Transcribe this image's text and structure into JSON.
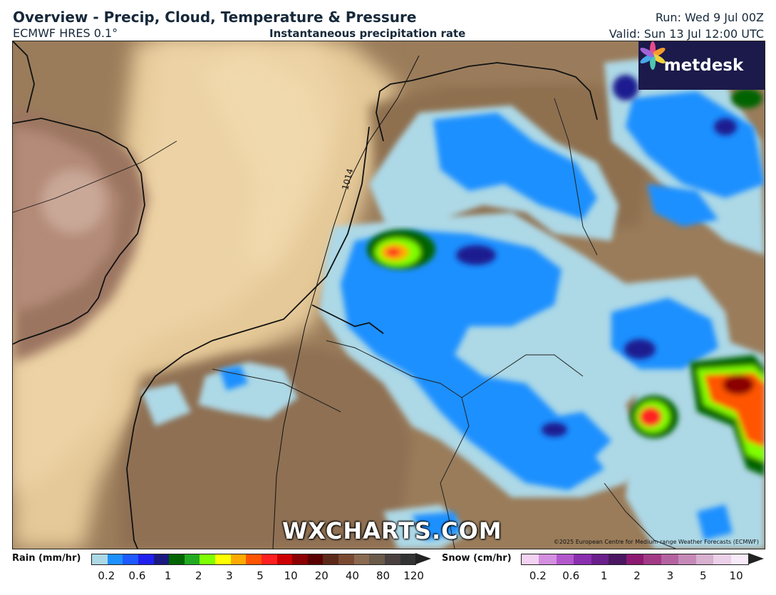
{
  "header": {
    "title": "Overview - Precip, Cloud, Temperature & Pressure",
    "model": "ECMWF HRES 0.1°",
    "field": "Instantaneous precipitation rate",
    "run": "Run: Wed 9 Jul 00Z",
    "valid": "Valid: Sun 13 Jul 12:00 UTC"
  },
  "map": {
    "isobar_label": "1014",
    "watermark": "WXCHARTS.COM",
    "copyright": "©2025 European Centre for Medium-range Weather Forecasts (ECMWF)",
    "logo_text": "metdesk"
  },
  "legend": {
    "rain": {
      "label": "Rain (mm/hr)",
      "ticks": [
        "0.2",
        "0.6",
        "1",
        "2",
        "3",
        "5",
        "10",
        "20",
        "40",
        "80",
        "120"
      ],
      "colors": [
        "#add8e6",
        "#1e90ff",
        "#1e5aff",
        "#2020ee",
        "#1a1a80",
        "#006400",
        "#22aa22",
        "#7fff00",
        "#ffff00",
        "#ffaa00",
        "#ff5500",
        "#ff2020",
        "#cc0000",
        "#8b0000",
        "#5a0000",
        "#5c2a1a",
        "#7a4a30",
        "#8a6a50",
        "#6a5a4a",
        "#4a4040",
        "#333333"
      ]
    },
    "snow": {
      "label": "Snow (cm/hr)",
      "ticks": [
        "0.2",
        "0.6",
        "1",
        "2",
        "3",
        "5",
        "10"
      ],
      "colors": [
        "#f3d2f3",
        "#d48fe0",
        "#b258cc",
        "#8a2fae",
        "#6a1f8a",
        "#4a1760",
        "#8b1a70",
        "#a23a86",
        "#b463a0",
        "#c68ab8",
        "#d8b0d0",
        "#ead0e8",
        "#f8eaf8"
      ]
    }
  }
}
